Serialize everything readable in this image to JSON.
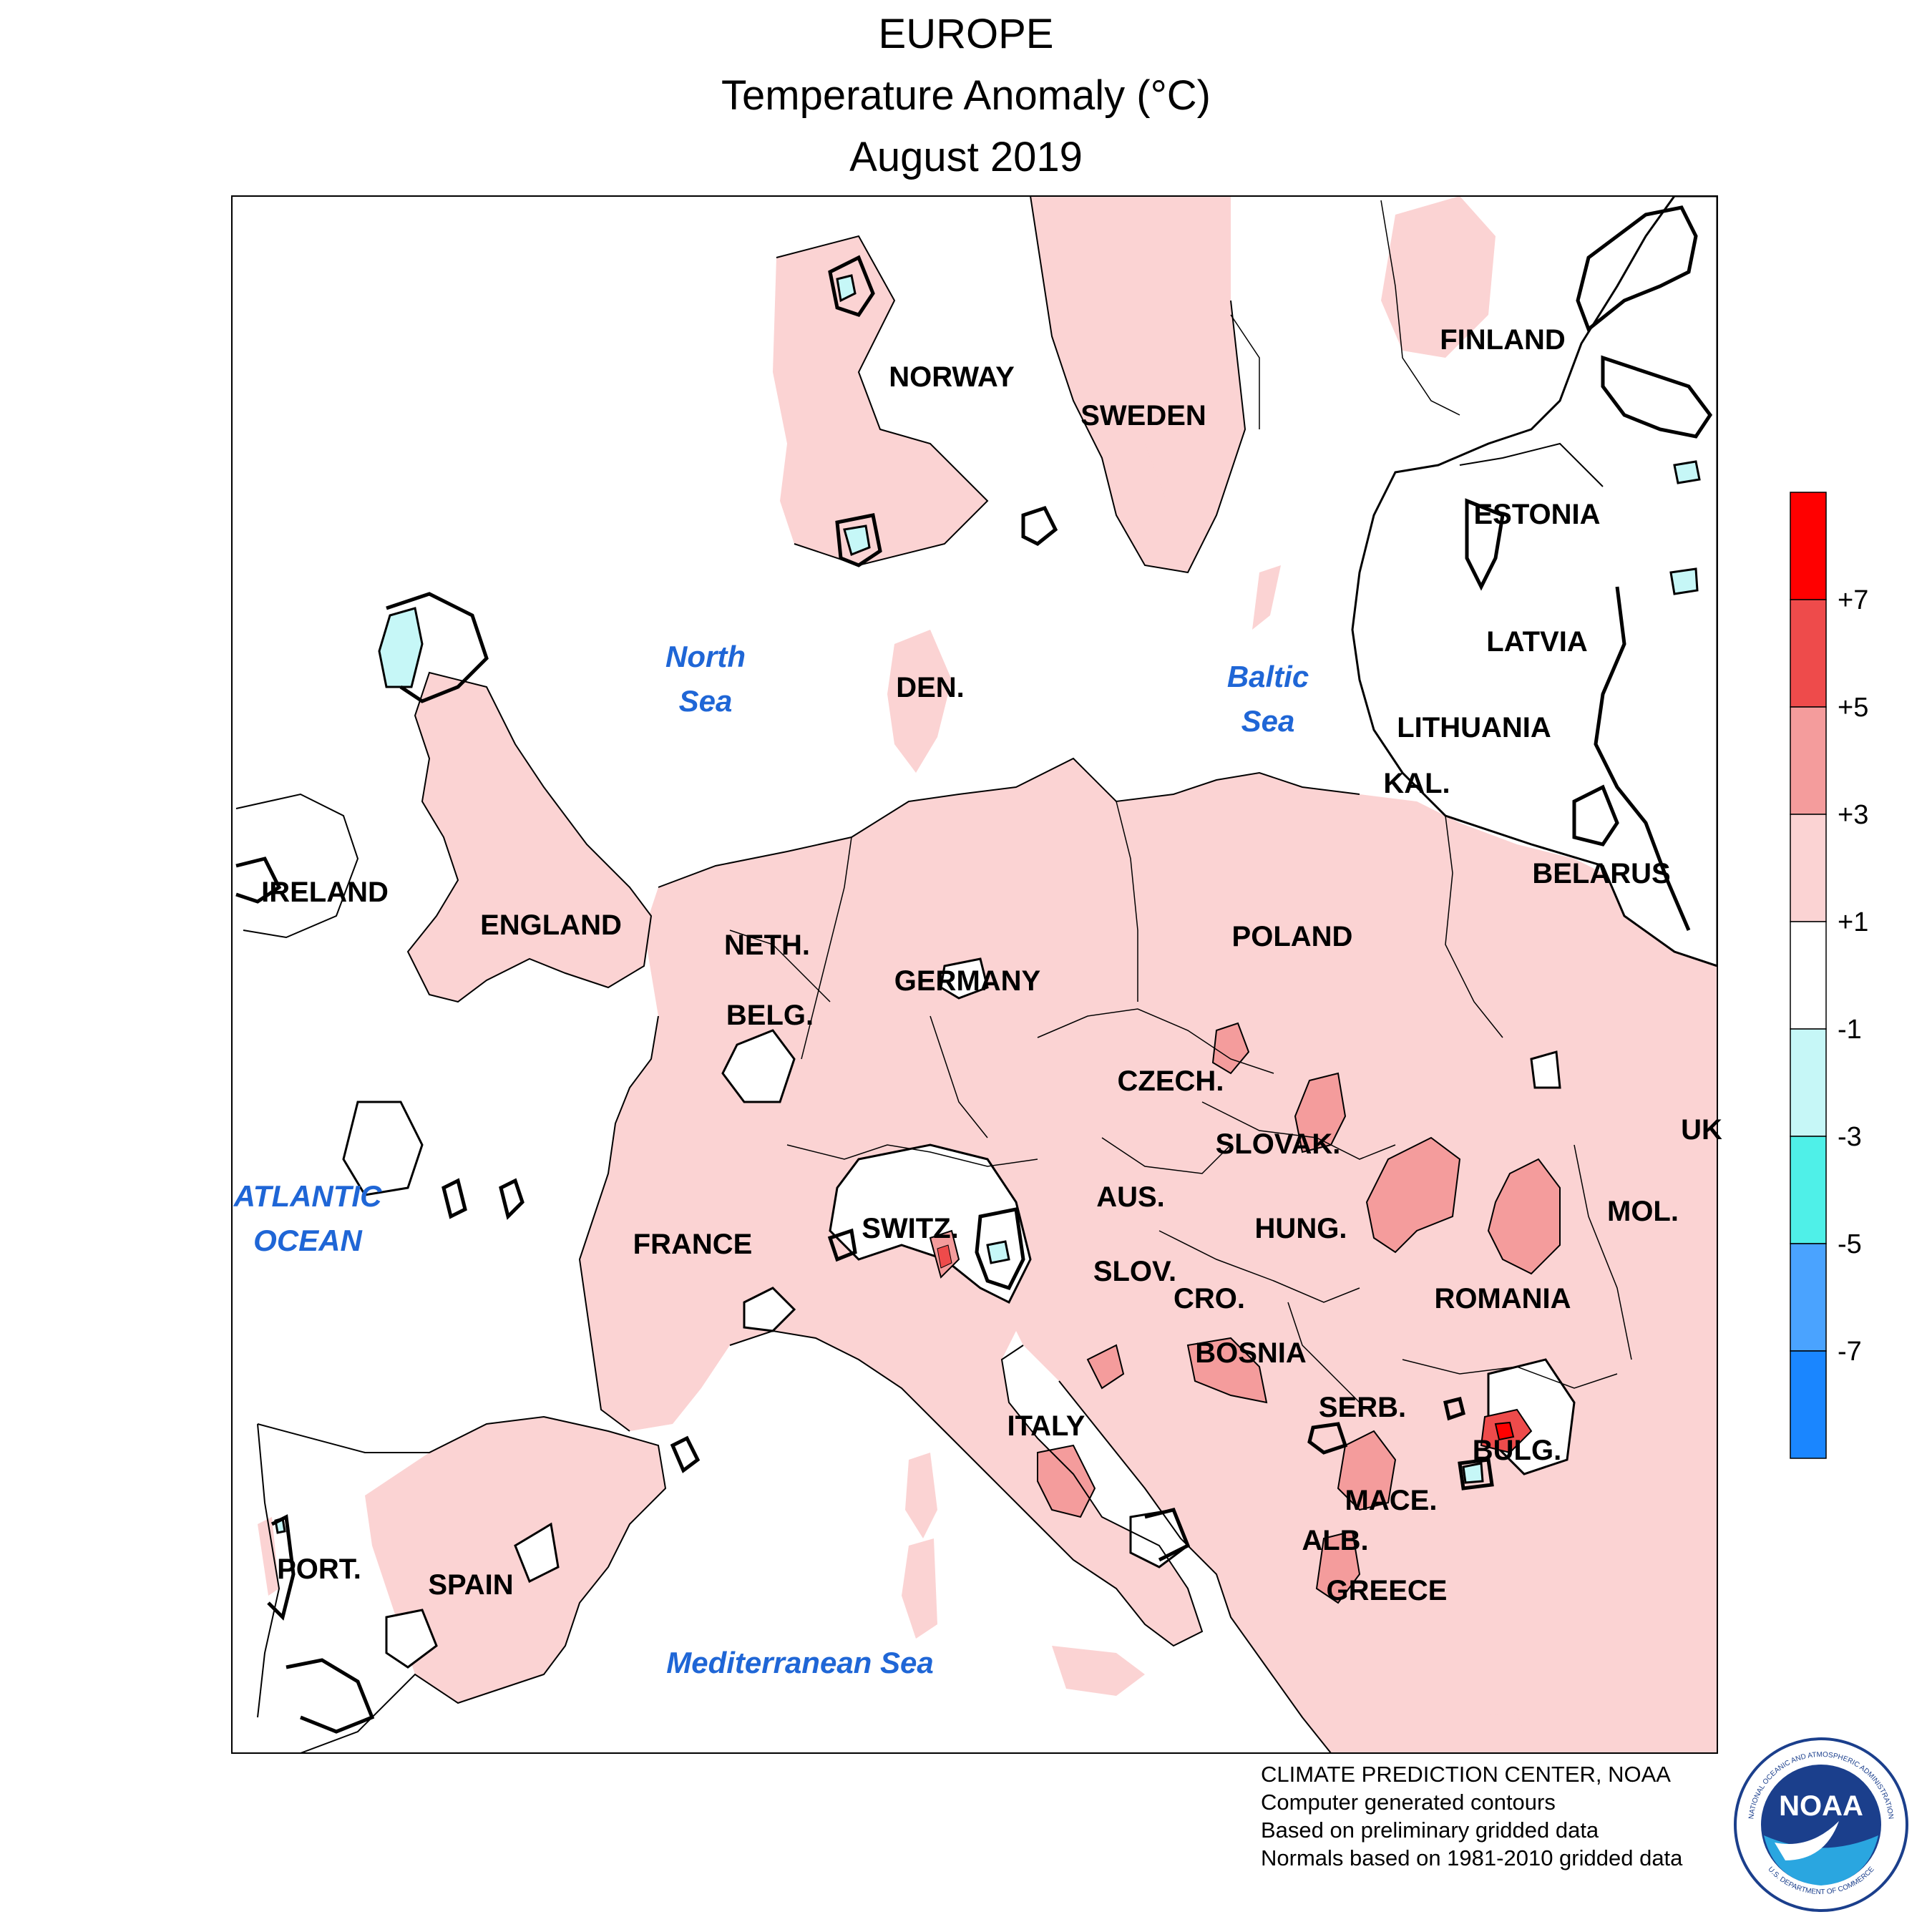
{
  "title": {
    "line1": "EUROPE",
    "line2": "Temperature Anomaly (°C)",
    "line3": "August 2019"
  },
  "colors": {
    "background": "#ffffff",
    "land_warm_1_3": "#fbd3d3",
    "warm_3_5": "#f49c9c",
    "warm_5_7": "#ee4b4b",
    "warm_gt7": "#ff0000",
    "cool_1_3": "#c6f7f7",
    "cool_3_5": "#4ff0e8",
    "cool_5_7": "#4aa3ff",
    "cool_lt7": "#1a86ff",
    "sea_label": "#1f66d6"
  },
  "countries": [
    "NORWAY",
    "SWEDEN",
    "FINLAND",
    "ESTONIA",
    "LATVIA",
    "LITHUANIA",
    "KAL.",
    "BELARUS",
    "IRELAND",
    "ENGLAND",
    "DEN.",
    "NETH.",
    "BELG.",
    "GERMANY",
    "POLAND",
    "CZECH.",
    "SLOVAK.",
    "UK",
    "AUS.",
    "HUNG.",
    "MOL.",
    "FRANCE",
    "SWITZ.",
    "SLOV.",
    "CRO.",
    "ROMANIA",
    "BOSNIA",
    "SERB.",
    "BULG.",
    "ITALY",
    "MACE.",
    "ALB.",
    "PORT.",
    "SPAIN",
    "GREECE"
  ],
  "seas": {
    "north_l1": "North",
    "north_l2": "Sea",
    "baltic_l1": "Baltic",
    "baltic_l2": "Sea",
    "atlantic_l1": "ATLANTIC",
    "atlantic_l2": "OCEAN",
    "med": "Mediterranean Sea"
  },
  "legend": {
    "labels": [
      "+7",
      "+5",
      "+3",
      "+1",
      "-1",
      "-3",
      "-5",
      "-7"
    ],
    "colors": [
      "#ff0000",
      "#ee4b4b",
      "#f49c9c",
      "#fbd3d3",
      "#ffffff",
      "#c6f7f7",
      "#4ff0e8",
      "#4aa3ff",
      "#1a86ff"
    ]
  },
  "credits": [
    "CLIMATE PREDICTION CENTER, NOAA",
    "Computer generated contours",
    "Based on preliminary gridded data",
    "Normals based on 1981-2010 gridded data"
  ],
  "logo": {
    "text": "NOAA",
    "ring_top": "NATIONAL OCEANIC AND ATMOSPHERIC ADMINISTRATION",
    "ring_bottom": "U.S. DEPARTMENT OF COMMERCE"
  }
}
